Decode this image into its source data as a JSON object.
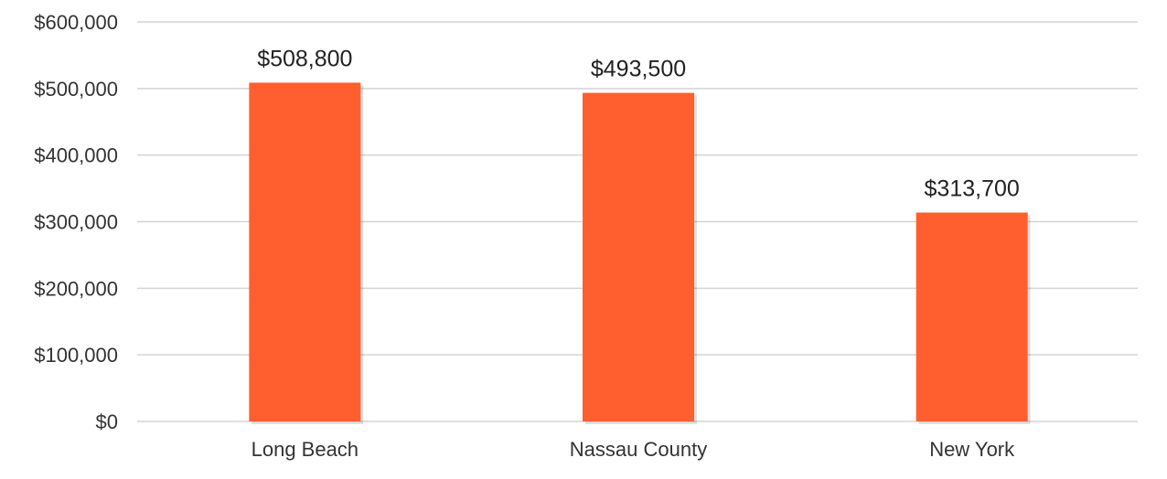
{
  "chart_data": {
    "type": "bar",
    "categories": [
      "Long Beach",
      "Nassau County",
      "New York"
    ],
    "values": [
      508800,
      493500,
      313700
    ],
    "value_labels": [
      "$508,800",
      "$493,500",
      "$313,700"
    ],
    "y_ticks": [
      {
        "value": 0,
        "label": "$0"
      },
      {
        "value": 100000,
        "label": "$100,000"
      },
      {
        "value": 200000,
        "label": "$200,000"
      },
      {
        "value": 300000,
        "label": "$300,000"
      },
      {
        "value": 400000,
        "label": "$400,000"
      },
      {
        "value": 500000,
        "label": "$500,000"
      },
      {
        "value": 600000,
        "label": "$600,000"
      }
    ],
    "ylim": [
      0,
      600000
    ],
    "grid": true,
    "bar_color": "#ff5f2e"
  }
}
